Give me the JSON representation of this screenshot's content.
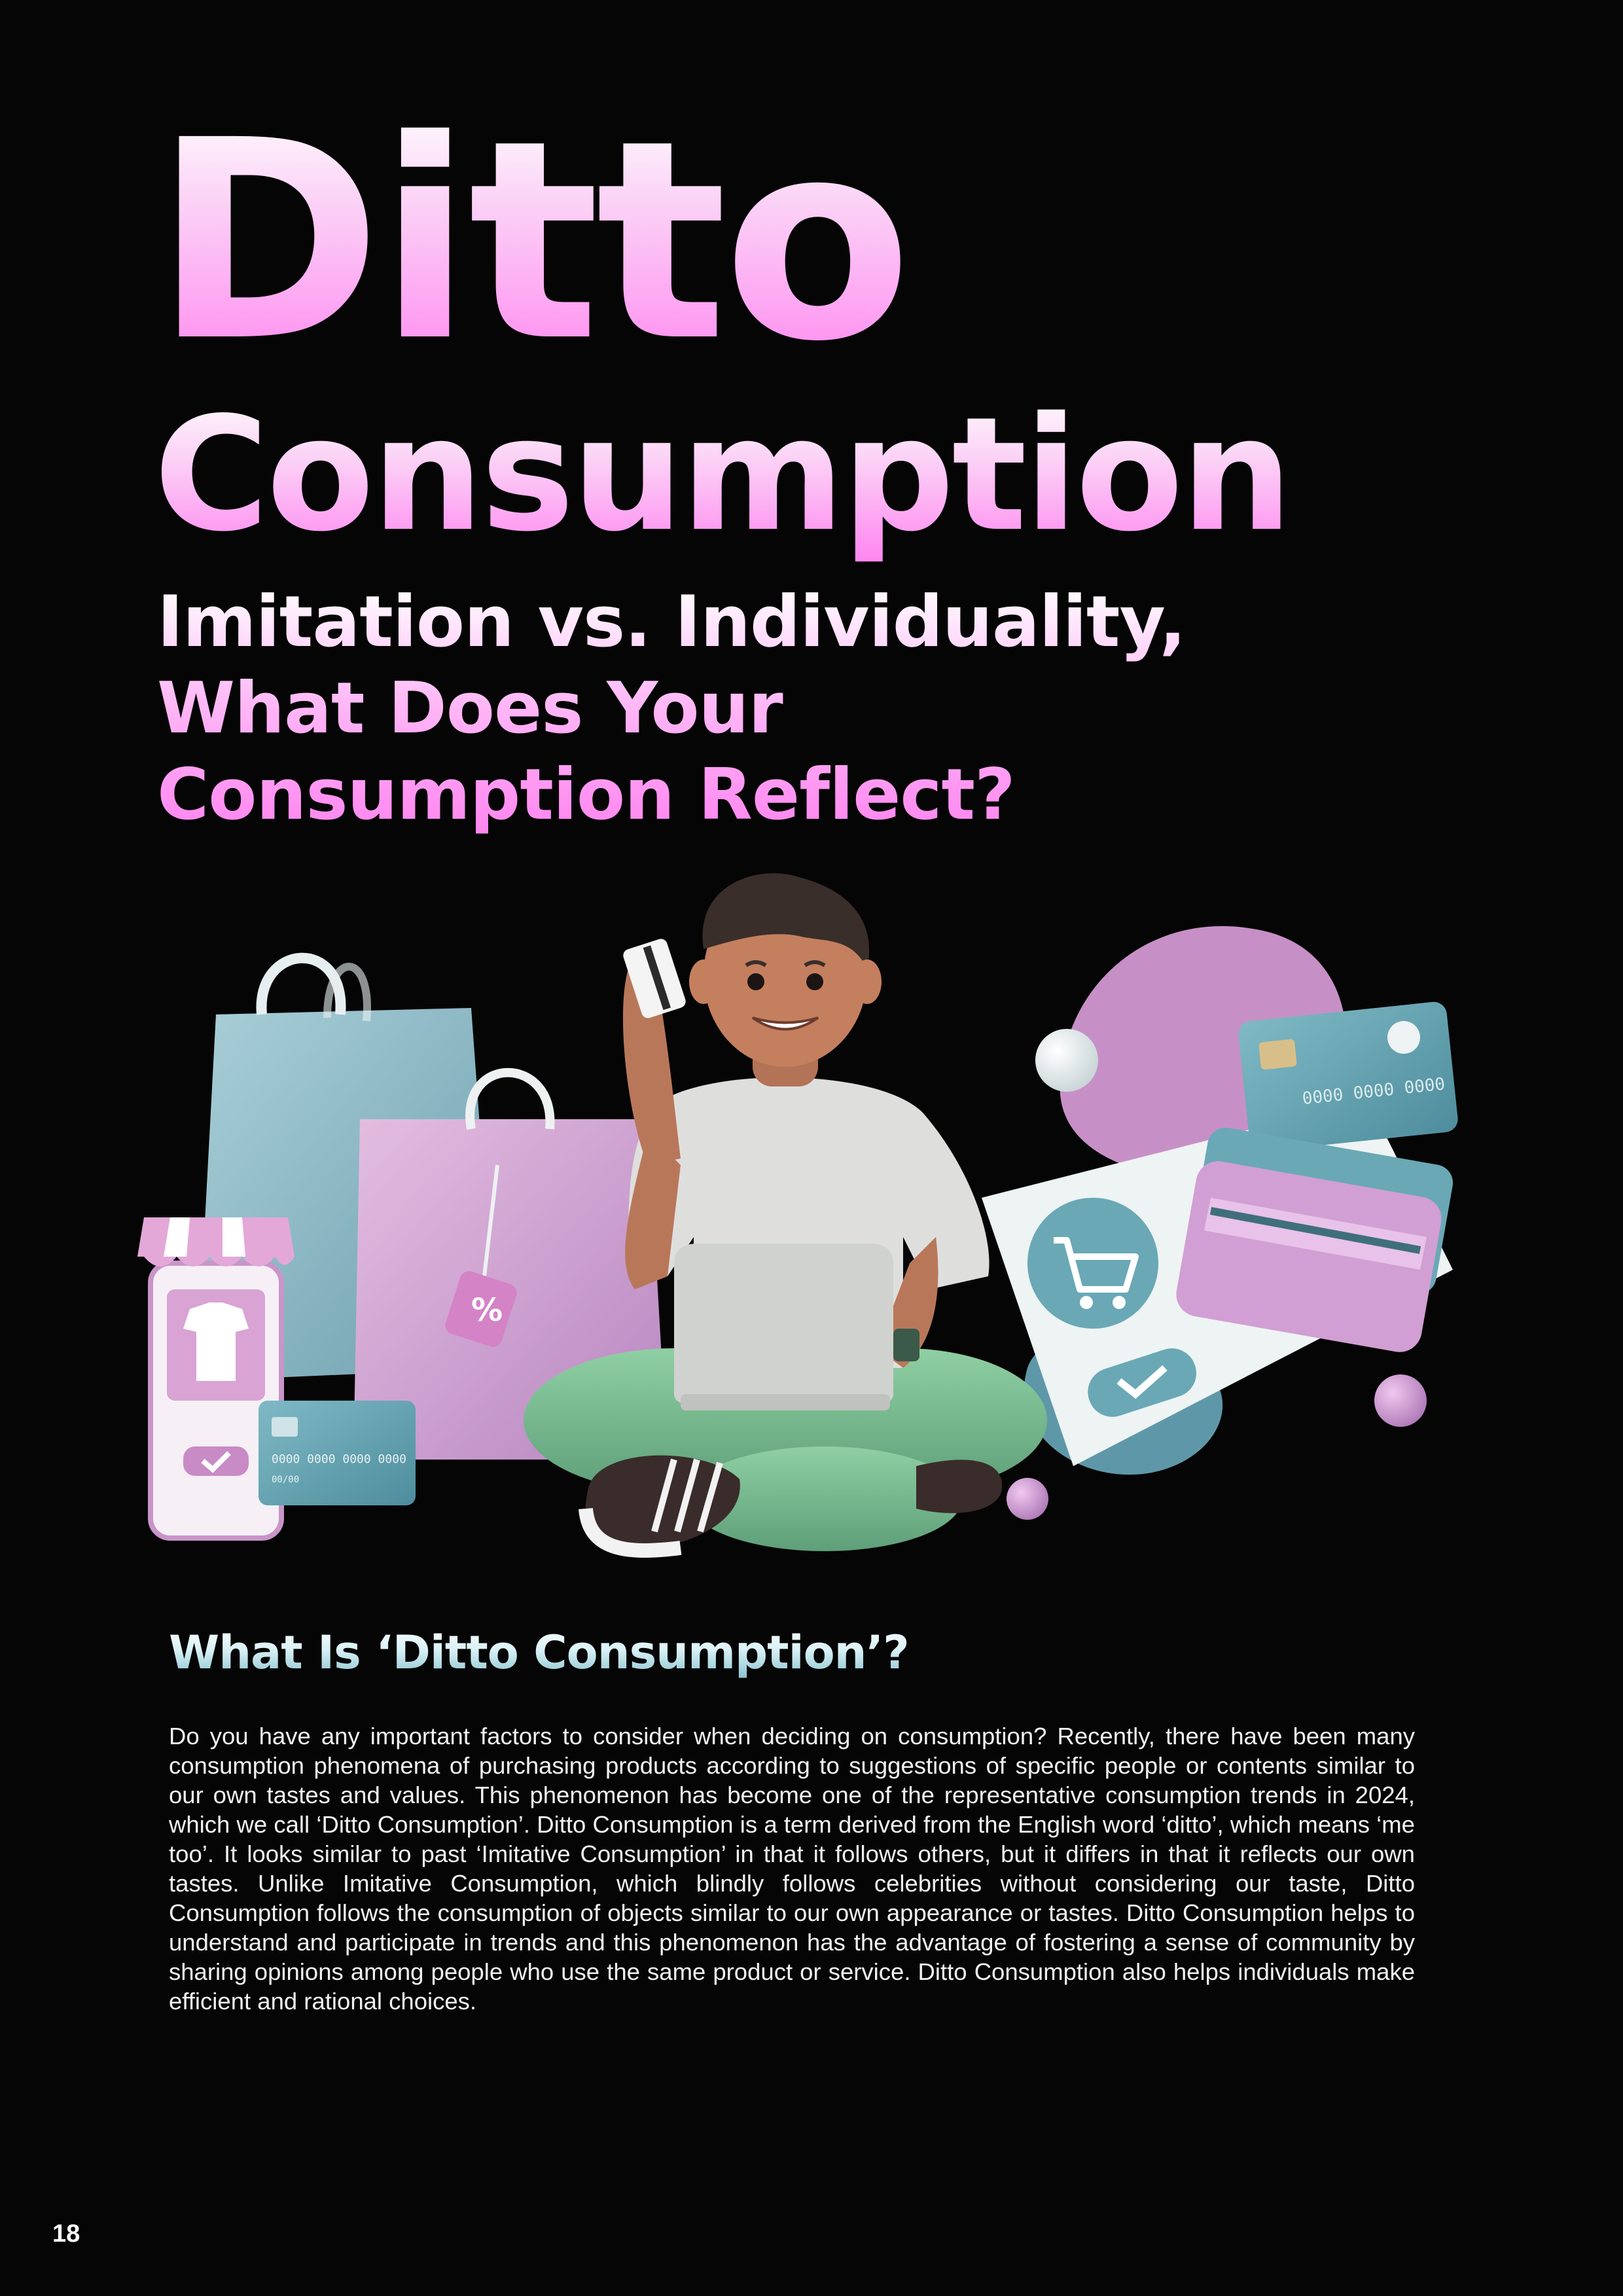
{
  "title": {
    "line1": "Ditto",
    "line2": "Consumption"
  },
  "subtitle": {
    "line1": "Imitation vs. Individuality,",
    "line2": "What Does Your",
    "line3": "Consumption Reflect?"
  },
  "illustration": {
    "card_number_right": "0000 0000 0000",
    "card_number_left": "0000 0000 0000 0000",
    "card_expiry_left": "00/00",
    "tag_symbol": "%"
  },
  "section": {
    "heading": "What Is ‘Ditto Consumption’?",
    "body": "Do you have any important factors to consider when deciding on consumption? Recently, there have been many consumption phenomena of purchasing products according to suggestions of specific people or contents similar to our own tastes and values. This phenomenon has become one of the representative consumption trends in 2024, which we call ‘Ditto Consumption’. Ditto Consumption is a term derived from the English word ‘ditto’, which means ‘me too’. It looks similar to past ‘Imitative Consumption’ in that it follows others, but it differs in that it reflects our own tastes. Unlike Imitative Consumption, which blindly follows celebrities without considering our taste, Ditto Consumption follows the consumption of objects similar to our own appearance or tastes. Ditto Consumption helps to understand and participate in trends and this phenomenon has the advantage of fostering a sense of community by sharing opinions among people who use the same product or service. Ditto Consumption also helps individuals make efficient and rational choices."
  },
  "page_number": "18",
  "colors": {
    "background": "#050505",
    "pink": "#ff84f0",
    "teal": "#6fb0bd",
    "lavender": "#d9a8d8"
  }
}
